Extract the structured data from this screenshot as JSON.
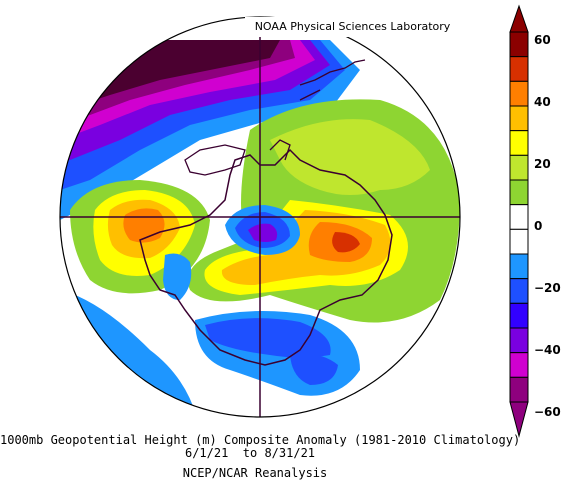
{
  "map": {
    "credit": "NOAA Physical Sciences Laboratory",
    "captions": {
      "line1": "1000mb Geopotential Height (m) Composite Anomaly (1981-2010 Climatology)",
      "line2": "6/1/21  to 8/31/21",
      "line3": "NCEP/NCAR Reanalysis"
    },
    "projection": "south-polar-stereographic",
    "region": "Antarctica"
  },
  "colorbar": {
    "ticks": [
      "60",
      "40",
      "20",
      "0",
      "−20",
      "−40",
      "−60"
    ],
    "colors": [
      "#8b0000",
      "#d73000",
      "#ff7f00",
      "#ffbf00",
      "#ffff00",
      "#bfe62e",
      "#8ed532",
      "#ffffff",
      "#ffffff",
      "#1e96ff",
      "#1e50ff",
      "#3200ff",
      "#7a00e0",
      "#d000d0",
      "#8e007e"
    ]
  }
}
